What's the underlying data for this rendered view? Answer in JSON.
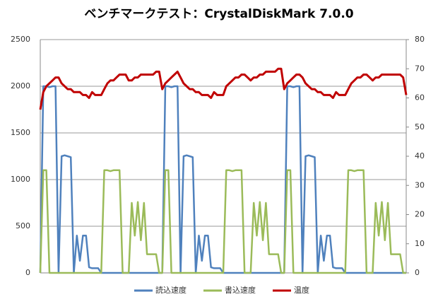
{
  "chart_data": {
    "type": "line",
    "title": "ベンチマークテスト：CrystalDiskMark 7.0.0",
    "ylim": [
      0,
      2500
    ],
    "yticks": [
      0,
      500,
      1000,
      1500,
      2000,
      2500
    ],
    "y2lim": [
      0,
      80
    ],
    "y2ticks": [
      0,
      10,
      20,
      30,
      40,
      50,
      60,
      70,
      80
    ],
    "grid": true,
    "legend": "bottom",
    "series": [
      {
        "name": "読込速度",
        "color": "#4f81bd",
        "values": [
          0,
          2000,
          2000,
          1990,
          2000,
          2000,
          0,
          1250,
          1260,
          1250,
          1240,
          0,
          400,
          130,
          400,
          400,
          60,
          50,
          50,
          50,
          0,
          0,
          0,
          0,
          0,
          0,
          0,
          0,
          0,
          0,
          0,
          0,
          0,
          0,
          0,
          0,
          0,
          0,
          0,
          0,
          0,
          2000,
          2000,
          1990,
          2000,
          2000,
          0,
          1250,
          1260,
          1250,
          1240,
          0,
          400,
          130,
          400,
          400,
          60,
          50,
          50,
          50,
          0,
          0,
          0,
          0,
          0,
          0,
          0,
          0,
          0,
          0,
          0,
          0,
          0,
          0,
          0,
          0,
          0,
          0,
          0,
          0,
          0,
          2000,
          2000,
          1990,
          2000,
          2000,
          0,
          1250,
          1260,
          1250,
          1240,
          0,
          400,
          130,
          400,
          400,
          60,
          50,
          50,
          50,
          0,
          0,
          0,
          0,
          0,
          0,
          0,
          0,
          0,
          0,
          0,
          0,
          0,
          0,
          0,
          0,
          0,
          0,
          0,
          0,
          0
        ]
      },
      {
        "name": "書込速度",
        "color": "#9bbb59",
        "values": [
          0,
          1100,
          1100,
          0,
          0,
          0,
          0,
          0,
          0,
          0,
          0,
          0,
          0,
          0,
          0,
          0,
          0,
          0,
          0,
          0,
          0,
          1100,
          1100,
          1090,
          1100,
          1100,
          1100,
          0,
          0,
          0,
          750,
          400,
          760,
          350,
          750,
          200,
          200,
          200,
          200,
          0,
          0,
          1100,
          1100,
          0,
          0,
          0,
          0,
          0,
          0,
          0,
          0,
          0,
          0,
          0,
          0,
          0,
          0,
          0,
          0,
          0,
          0,
          1100,
          1100,
          1090,
          1100,
          1100,
          1100,
          0,
          0,
          0,
          750,
          400,
          760,
          350,
          750,
          200,
          200,
          200,
          200,
          0,
          0,
          1100,
          1100,
          0,
          0,
          0,
          0,
          0,
          0,
          0,
          0,
          0,
          0,
          0,
          0,
          0,
          0,
          0,
          0,
          0,
          0,
          1100,
          1100,
          1090,
          1100,
          1100,
          1100,
          0,
          0,
          0,
          750,
          400,
          760,
          350,
          750,
          200,
          200,
          200,
          200,
          0,
          0
        ]
      },
      {
        "name": "温度",
        "color": "#c00000",
        "axis": "y2",
        "values": [
          56,
          62,
          64,
          65,
          66,
          67,
          67,
          65,
          64,
          63,
          63,
          62,
          62,
          62,
          61,
          61,
          60,
          62,
          61,
          61,
          61,
          63,
          65,
          66,
          66,
          67,
          68,
          68,
          68,
          66,
          66,
          67,
          67,
          68,
          68,
          68,
          68,
          68,
          69,
          69,
          63,
          65,
          66,
          67,
          68,
          69,
          67,
          65,
          64,
          63,
          63,
          62,
          62,
          61,
          61,
          61,
          60,
          62,
          61,
          61,
          61,
          64,
          65,
          66,
          67,
          67,
          68,
          68,
          67,
          66,
          67,
          67,
          68,
          68,
          69,
          69,
          69,
          69,
          70,
          70,
          63,
          65,
          66,
          67,
          68,
          68,
          67,
          65,
          64,
          63,
          63,
          62,
          62,
          61,
          61,
          61,
          60,
          62,
          61,
          61,
          61,
          63,
          65,
          66,
          67,
          67,
          68,
          68,
          67,
          66,
          67,
          67,
          68,
          68,
          68,
          68,
          68,
          68,
          68,
          67,
          61
        ]
      }
    ]
  }
}
